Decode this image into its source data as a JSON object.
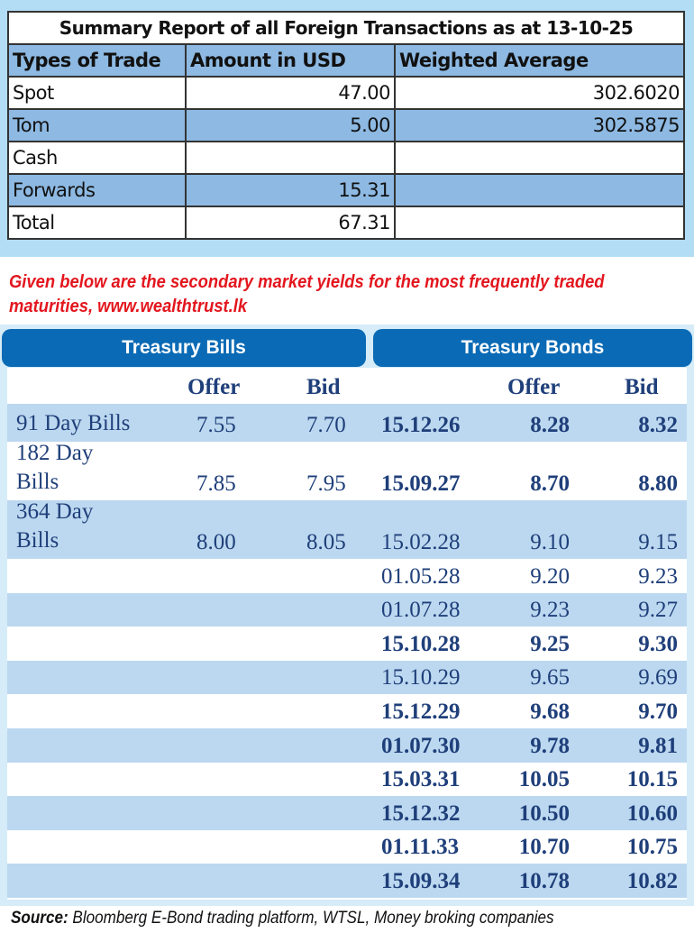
{
  "summary": {
    "title": "Summary Report of all Foreign Transactions as at 13-10-25",
    "headers": [
      "Types of Trade",
      "Amount in USD",
      "Weighted Average"
    ],
    "rows": [
      [
        "Spot",
        "47.00",
        "302.6020"
      ],
      [
        "Tom",
        "5.00",
        "302.5875"
      ],
      [
        "Cash",
        "",
        ""
      ],
      [
        "Forwards",
        "15.31",
        ""
      ],
      [
        "Total",
        "67.31",
        ""
      ]
    ]
  },
  "note": "Given below are the secondary market yields for the most frequently traded maturities, www.wealthtrust.lk",
  "yields": {
    "bills_title": "Treasury Bills",
    "bonds_title": "Treasury Bonds",
    "col_offer": "Offer",
    "col_bid": "Bid",
    "bills": [
      {
        "name": "91 Day Bills",
        "offer": "7.55",
        "bid": "7.70"
      },
      {
        "name": "182 Day Bills",
        "offer": "7.85",
        "bid": "7.95"
      },
      {
        "name": "364 Day Bills",
        "offer": "8.00",
        "bid": "8.05"
      }
    ],
    "bonds": [
      {
        "maturity": "15.12.26",
        "offer": "8.28",
        "bid": "8.32",
        "bold": true
      },
      {
        "maturity": "15.09.27",
        "offer": "8.70",
        "bid": "8.80",
        "bold": true
      },
      {
        "maturity": "15.02.28",
        "offer": "9.10",
        "bid": "9.15",
        "bold": false
      },
      {
        "maturity": "01.05.28",
        "offer": "9.20",
        "bid": "9.23",
        "bold": false
      },
      {
        "maturity": "01.07.28",
        "offer": "9.23",
        "bid": "9.27",
        "bold": false
      },
      {
        "maturity": "15.10.28",
        "offer": "9.25",
        "bid": "9.30",
        "bold": true
      },
      {
        "maturity": "15.10.29",
        "offer": "9.65",
        "bid": "9.69",
        "bold": false
      },
      {
        "maturity": "15.12.29",
        "offer": "9.68",
        "bid": "9.70",
        "bold": true
      },
      {
        "maturity": "01.07.30",
        "offer": "9.78",
        "bid": "9.81",
        "bold": true
      },
      {
        "maturity": "15.03.31",
        "offer": "10.05",
        "bid": "10.15",
        "bold": true
      },
      {
        "maturity": "15.12.32",
        "offer": "10.50",
        "bid": "10.60",
        "bold": true
      },
      {
        "maturity": "01.11.33",
        "offer": "10.70",
        "bid": "10.75",
        "bold": true
      },
      {
        "maturity": "15.09.34",
        "offer": "10.78",
        "bid": "10.82",
        "bold": true
      }
    ]
  },
  "source": {
    "label": "Source:",
    "text": " Bloomberg E-Bond trading platform, WTSL, Money broking companies"
  },
  "colors": {
    "header_blue": "#0a6ab5",
    "row_blue": "#bcd8f0",
    "note_red": "#e3161e",
    "table_blue": "#8db9e2"
  }
}
